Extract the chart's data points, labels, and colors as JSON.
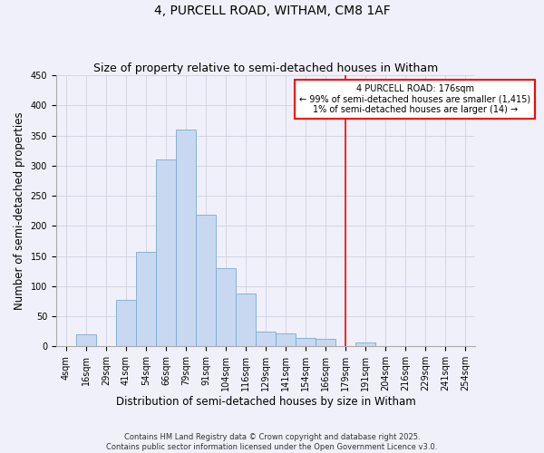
{
  "title": "4, PURCELL ROAD, WITHAM, CM8 1AF",
  "subtitle": "Size of property relative to semi-detached houses in Witham",
  "xlabel": "Distribution of semi-detached houses by size in Witham",
  "ylabel": "Number of semi-detached properties",
  "bin_labels": [
    "4sqm",
    "16sqm",
    "29sqm",
    "41sqm",
    "54sqm",
    "66sqm",
    "79sqm",
    "91sqm",
    "104sqm",
    "116sqm",
    "129sqm",
    "141sqm",
    "154sqm",
    "166sqm",
    "179sqm",
    "191sqm",
    "204sqm",
    "216sqm",
    "229sqm",
    "241sqm",
    "254sqm"
  ],
  "bar_heights": [
    0,
    20,
    0,
    77,
    157,
    310,
    360,
    218,
    130,
    88,
    25,
    21,
    14,
    13,
    0,
    6,
    0,
    0,
    0,
    0,
    0
  ],
  "bar_color": "#c8d8f0",
  "bar_edge_color": "#7aaad0",
  "vline_x": 14,
  "vline_color": "red",
  "annotation_line1": "4 PURCELL ROAD: 176sqm",
  "annotation_line2": "← 99% of semi-detached houses are smaller (1,415)",
  "annotation_line3": "1% of semi-detached houses are larger (14) →",
  "annotation_box_color": "white",
  "annotation_box_edgecolor": "red",
  "ylim": [
    0,
    450
  ],
  "yticks": [
    0,
    50,
    100,
    150,
    200,
    250,
    300,
    350,
    400,
    450
  ],
  "footer1": "Contains HM Land Registry data © Crown copyright and database right 2025.",
  "footer2": "Contains public sector information licensed under the Open Government Licence v3.0.",
  "background_color": "#f0f0fa",
  "grid_color": "#d0d0e0",
  "title_fontsize": 10,
  "subtitle_fontsize": 9,
  "axis_label_fontsize": 8.5,
  "tick_fontsize": 7,
  "annotation_fontsize": 7,
  "footer_fontsize": 6
}
